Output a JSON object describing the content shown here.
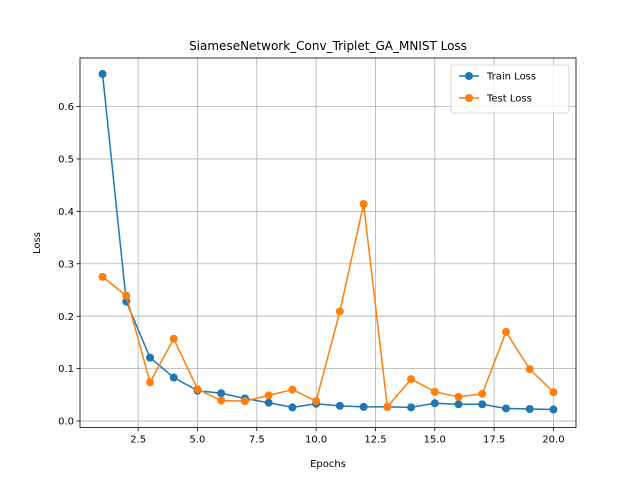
{
  "chart_data": {
    "type": "line",
    "title": "SiameseNetwork_Conv_Triplet_GA_MNIST Loss",
    "xlabel": "Epochs",
    "ylabel": "Loss",
    "xlim": [
      0.05,
      20.95
    ],
    "ylim": [
      -0.0125,
      0.6925
    ],
    "xticks": [
      2.5,
      5.0,
      7.5,
      10.0,
      12.5,
      15.0,
      17.5,
      20.0
    ],
    "xtick_labels": [
      "2.5",
      "5.0",
      "7.5",
      "10.0",
      "12.5",
      "15.0",
      "17.5",
      "20.0"
    ],
    "yticks": [
      0.0,
      0.1,
      0.2,
      0.3,
      0.4,
      0.5,
      0.6
    ],
    "ytick_labels": [
      "0.0",
      "0.1",
      "0.2",
      "0.3",
      "0.4",
      "0.5",
      "0.6"
    ],
    "grid": true,
    "legend_position": "top-right",
    "x": [
      1,
      2,
      3,
      4,
      5,
      6,
      7,
      8,
      9,
      10,
      11,
      12,
      13,
      14,
      15,
      16,
      17,
      18,
      19,
      20
    ],
    "series": [
      {
        "name": "Train Loss",
        "color": "#1f77b4",
        "values": [
          0.662,
          0.228,
          0.121,
          0.083,
          0.058,
          0.053,
          0.043,
          0.035,
          0.026,
          0.033,
          0.029,
          0.027,
          0.027,
          0.026,
          0.034,
          0.032,
          0.032,
          0.024,
          0.023,
          0.022
        ]
      },
      {
        "name": "Test Loss",
        "color": "#ff7f0e",
        "values": [
          0.275,
          0.239,
          0.074,
          0.157,
          0.061,
          0.039,
          0.038,
          0.049,
          0.06,
          0.038,
          0.209,
          0.414,
          0.027,
          0.08,
          0.056,
          0.046,
          0.052,
          0.17,
          0.099,
          0.055
        ]
      }
    ]
  }
}
